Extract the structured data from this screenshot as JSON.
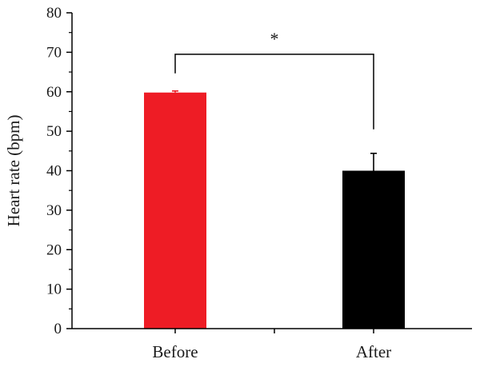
{
  "chart_data": {
    "type": "bar",
    "title": "",
    "xlabel": "",
    "ylabel": "Heart rate (bpm)",
    "ylim": [
      0,
      80
    ],
    "yticks": [
      0,
      10,
      20,
      30,
      40,
      50,
      60,
      70,
      80
    ],
    "categories": [
      "Before",
      "After"
    ],
    "values": [
      59.8,
      40.0
    ],
    "errors": [
      0.4,
      4.4
    ],
    "colors": [
      "#ee1c25",
      "#000000"
    ],
    "grid": false,
    "significance": {
      "between": [
        "Before",
        "After"
      ],
      "label": "*"
    }
  }
}
